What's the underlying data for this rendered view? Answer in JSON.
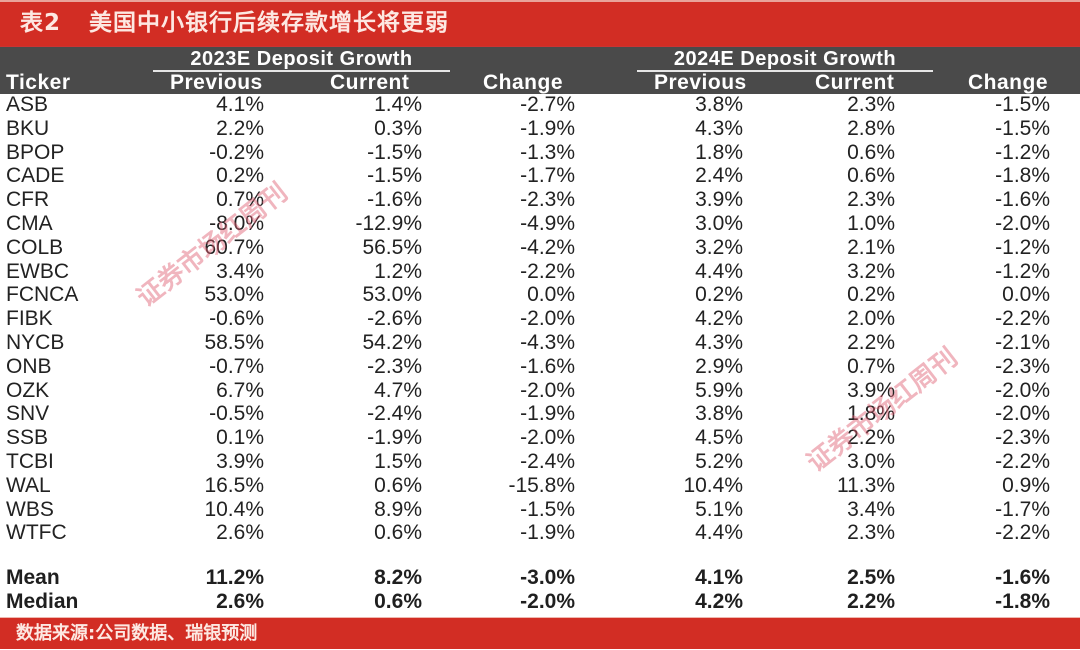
{
  "title": {
    "number": "表2",
    "text": "美国中小银行后续存款增长将更弱"
  },
  "header": {
    "ticker_label": "Ticker",
    "groups": [
      {
        "label": "2023E Deposit Growth",
        "previous": "Previous",
        "current": "Current",
        "change": "Change"
      },
      {
        "label": "2024E Deposit Growth",
        "previous": "Previous",
        "current": "Current",
        "change": "Change"
      }
    ]
  },
  "rows": [
    {
      "ticker": "ASB",
      "p23": "4.1%",
      "c23": "1.4%",
      "ch23": "-2.7%",
      "p24": "3.8%",
      "c24": "2.3%",
      "ch24": "-1.5%"
    },
    {
      "ticker": "BKU",
      "p23": "2.2%",
      "c23": "0.3%",
      "ch23": "-1.9%",
      "p24": "4.3%",
      "c24": "2.8%",
      "ch24": "-1.5%"
    },
    {
      "ticker": "BPOP",
      "p23": "-0.2%",
      "c23": "-1.5%",
      "ch23": "-1.3%",
      "p24": "1.8%",
      "c24": "0.6%",
      "ch24": "-1.2%"
    },
    {
      "ticker": "CADE",
      "p23": "0.2%",
      "c23": "-1.5%",
      "ch23": "-1.7%",
      "p24": "2.4%",
      "c24": "0.6%",
      "ch24": "-1.8%"
    },
    {
      "ticker": "CFR",
      "p23": "0.7%",
      "c23": "-1.6%",
      "ch23": "-2.3%",
      "p24": "3.9%",
      "c24": "2.3%",
      "ch24": "-1.6%"
    },
    {
      "ticker": "CMA",
      "p23": "-8.0%",
      "c23": "-12.9%",
      "ch23": "-4.9%",
      "p24": "3.0%",
      "c24": "1.0%",
      "ch24": "-2.0%"
    },
    {
      "ticker": "COLB",
      "p23": "60.7%",
      "c23": "56.5%",
      "ch23": "-4.2%",
      "p24": "3.2%",
      "c24": "2.1%",
      "ch24": "-1.2%"
    },
    {
      "ticker": "EWBC",
      "p23": "3.4%",
      "c23": "1.2%",
      "ch23": "-2.2%",
      "p24": "4.4%",
      "c24": "3.2%",
      "ch24": "-1.2%"
    },
    {
      "ticker": "FCNCA",
      "p23": "53.0%",
      "c23": "53.0%",
      "ch23": "0.0%",
      "p24": "0.2%",
      "c24": "0.2%",
      "ch24": "0.0%"
    },
    {
      "ticker": "FIBK",
      "p23": "-0.6%",
      "c23": "-2.6%",
      "ch23": "-2.0%",
      "p24": "4.2%",
      "c24": "2.0%",
      "ch24": "-2.2%"
    },
    {
      "ticker": "NYCB",
      "p23": "58.5%",
      "c23": "54.2%",
      "ch23": "-4.3%",
      "p24": "4.3%",
      "c24": "2.2%",
      "ch24": "-2.1%"
    },
    {
      "ticker": "ONB",
      "p23": "-0.7%",
      "c23": "-2.3%",
      "ch23": "-1.6%",
      "p24": "2.9%",
      "c24": "0.7%",
      "ch24": "-2.3%"
    },
    {
      "ticker": "OZK",
      "p23": "6.7%",
      "c23": "4.7%",
      "ch23": "-2.0%",
      "p24": "5.9%",
      "c24": "3.9%",
      "ch24": "-2.0%"
    },
    {
      "ticker": "SNV",
      "p23": "-0.5%",
      "c23": "-2.4%",
      "ch23": "-1.9%",
      "p24": "3.8%",
      "c24": "1.8%",
      "ch24": "-2.0%"
    },
    {
      "ticker": "SSB",
      "p23": "0.1%",
      "c23": "-1.9%",
      "ch23": "-2.0%",
      "p24": "4.5%",
      "c24": "2.2%",
      "ch24": "-2.3%"
    },
    {
      "ticker": "TCBI",
      "p23": "3.9%",
      "c23": "1.5%",
      "ch23": "-2.4%",
      "p24": "5.2%",
      "c24": "3.0%",
      "ch24": "-2.2%"
    },
    {
      "ticker": "WAL",
      "p23": "16.5%",
      "c23": "0.6%",
      "ch23": "-15.8%",
      "p24": "10.4%",
      "c24": "11.3%",
      "ch24": "0.9%"
    },
    {
      "ticker": "WBS",
      "p23": "10.4%",
      "c23": "8.9%",
      "ch23": "-1.5%",
      "p24": "5.1%",
      "c24": "3.4%",
      "ch24": "-1.7%"
    },
    {
      "ticker": "WTFC",
      "p23": "2.6%",
      "c23": "0.6%",
      "ch23": "-1.9%",
      "p24": "4.4%",
      "c24": "2.3%",
      "ch24": "-2.2%"
    }
  ],
  "summary": [
    {
      "ticker": "Mean",
      "p23": "11.2%",
      "c23": "8.2%",
      "ch23": "-3.0%",
      "p24": "4.1%",
      "c24": "2.5%",
      "ch24": "-1.6%"
    },
    {
      "ticker": "Median",
      "p23": "2.6%",
      "c23": "0.6%",
      "ch23": "-2.0%",
      "p24": "4.2%",
      "c24": "2.2%",
      "ch24": "-1.8%"
    }
  ],
  "source": "数据来源:公司数据、瑞银预测",
  "watermarks": [
    "证券市场红周刊",
    "证券市场红周刊"
  ],
  "colors": {
    "title_bar": "#d22d24",
    "header_bg": "#4a4a4a",
    "text": "#222222",
    "watermark": "#de5a6e"
  }
}
